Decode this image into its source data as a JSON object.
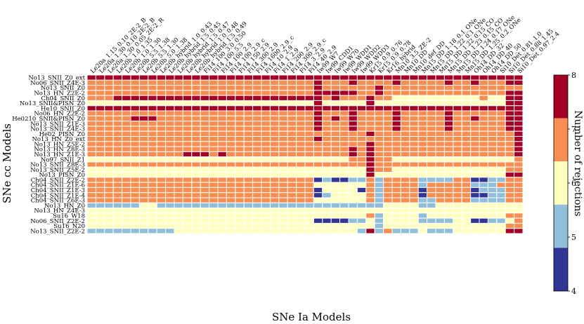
{
  "chart_data": {
    "type": "heatmap",
    "title": "",
    "xlabel": "SNe Ia Models",
    "ylabel": "SNe cc Models",
    "colorbar_label": "Number of rejections",
    "colorbar_ticks": [
      "4",
      "5",
      "6",
      "7",
      "8"
    ],
    "clim": [
      4,
      8
    ],
    "colors": {
      "4": "#313695",
      "5": "#91bfdb",
      "6": "#ffffbf",
      "7": "#f98e52",
      "8": "#a50026"
    },
    "x_categories": [
      "Le20a_1.15_0.10_2E-2_B",
      "Le20a_1.30_0.10_2E-2_B",
      "Le20a_1.30_0.05_2E-2_R",
      "Le20b_1.0_1.35",
      "Le20b_1.0_1.30",
      "Le20b_5.5_1.38",
      "Le20b_5.5_1.30",
      "Le20b_5.0_1.38",
      "Le20b_hybrid_1.0_0.43",
      "Le20b_hybrid_1.5_0.45",
      "Le20b_hybrid_1.5_0.47",
      "Le20b_hybrid_1.0_0.48",
      "Le20b_hybrid_1.5_0.49",
      "Fi14_100_3.0_0.50",
      "Fi14_100_5.5",
      "Fi14_100_2.9",
      "Fi14_100_2.9_c",
      "Fi14_150_2.9",
      "Fi14_300_2.9",
      "Fi14_1600_2.9_c",
      "Fi14_10_2.9",
      "Fi14_1_2.9",
      "Fi14_200_2.9",
      "Fi14_300_2.9_c",
      "Fi14_3_2.9",
      "Fi14_40_2.9",
      "Iw99_W7",
      "Iw99_CDD1",
      "Iw99_W70",
      "Iw99_WDD1",
      "Iw99_WDD2",
      "Iw99_WDD3",
      "Kr15_0.9_0.76",
      "Kr15_0.9_0.78",
      "Kr16_hybrid",
      "Mn10_3.5_ZE-2",
      "Mn10_DD",
      "Mn10_def_DD",
      "Mn15_DD_1.18_0.1_ONe",
      "Mn15_DD_1.22_0.1_ONe",
      "Mn15_DD_1.22_0.15_CO",
      "Mn15_DD_1.23_0.15_CO",
      "Mn15_DD_1.24_0.17_ONe",
      "Mn15_DD_1.25_0.2_ONe",
      "Oh14_DD_32",
      "Oh14_DD_40",
      "Oh14_DD_50",
      "Si10_Det_0.81_1.0",
      "Si10_Det_0.88_1.45",
      "Si10_Det_0.97_2.4"
    ],
    "y_categories": [
      "No13_SNII_Z0_ext",
      "No06_SNII_Z4E-3",
      "No13_SNII_Z0",
      "No13_HN_Z2E-2",
      "Ch04_SNII_Z0",
      "No13_SNII&PISN_Z0",
      "He10_SNII_Z0",
      "No06_HN_Z2E-2",
      "He0210_SNII&PISN_Z0",
      "No13_SNII_Z1E-3",
      "No13_SNII_Z4E-3",
      "He02_PISN_Z0",
      "No13_HN_Z0_ext",
      "No13_HN_Z5E-2",
      "No13_HN_Z8E-3",
      "No13_HN_Z1E-3",
      "No97_SNII_Z1",
      "No13_SNII_Z8E-3",
      "No13_SNII_Z5E-2",
      "No13_PISN_Z0",
      "Ch04_SNII_Z2E-2",
      "Ch04_SNII_Z1E-6",
      "Ch04_SNII_Z1E-3",
      "Ch04_SNII_Z1E-4",
      "Ch04_SNII_Z6E-3",
      "No13_HN_Z0",
      "No13_HN_Z4E-3",
      "Su16_W18",
      "No06_SNII_Z2E-2",
      "Su16_N20",
      "No13_SNII_Z2E-2"
    ],
    "values": [
      "88888888888888888888888888888888888888888888888888",
      "77777777777777777777777777877787777877777877877788",
      "77777777777777777777777777877777787777777777777777",
      "77777777777777777777777777888887787777777777777788",
      "77788888888888888888888888878777877666666666676688",
      "66666666666666666666666666866666866666666666666688",
      "88888888888888888888888888888888888888888888888888",
      "77777777777777777777777777877787777877777877777788",
      "77777888777777777777777777878787777877777877877788",
      "77777777777777777777777777877787777877777877777788",
      "77777777777777777777777777877787777877777877777788",
      "77777777777777777777777777777777877777777777777778",
      "77777777777777777777777777877777777777777777777778",
      "77777777777777777777777777777777877777777777777778",
      "77777777777777777777777777777787877777777777777778",
      "77777777777888787777777777777787877777777777777778",
      "66666666666666666666666666666677877666666666666667",
      "77777777777777777777777777777777877777777777777777",
      "66666666666666666666666666666666877666666666666677",
      "66666666666666666666666666666666866666666666666688",
      "77777777777777777777777777454455757777555577445577",
      "77777777777777777777777777666666757777577777555777",
      "77777777777777777777777777466664757777477777455577",
      "77777777777777777777777777456666757777477777445577",
      "77777777777777777777777777666666757777557777555577",
      "55555566555555555555555555555555556666556666666666",
      "66666666666666666666666666666666666666666666666666",
      "66666666666666666666666666666666756666566666666677",
      "66666666666666666666666666444455656666555566445567",
      "66666666666666666666666666666666656666666666666677",
      "55555555556666666666666666666665857555655566666688"
    ]
  }
}
